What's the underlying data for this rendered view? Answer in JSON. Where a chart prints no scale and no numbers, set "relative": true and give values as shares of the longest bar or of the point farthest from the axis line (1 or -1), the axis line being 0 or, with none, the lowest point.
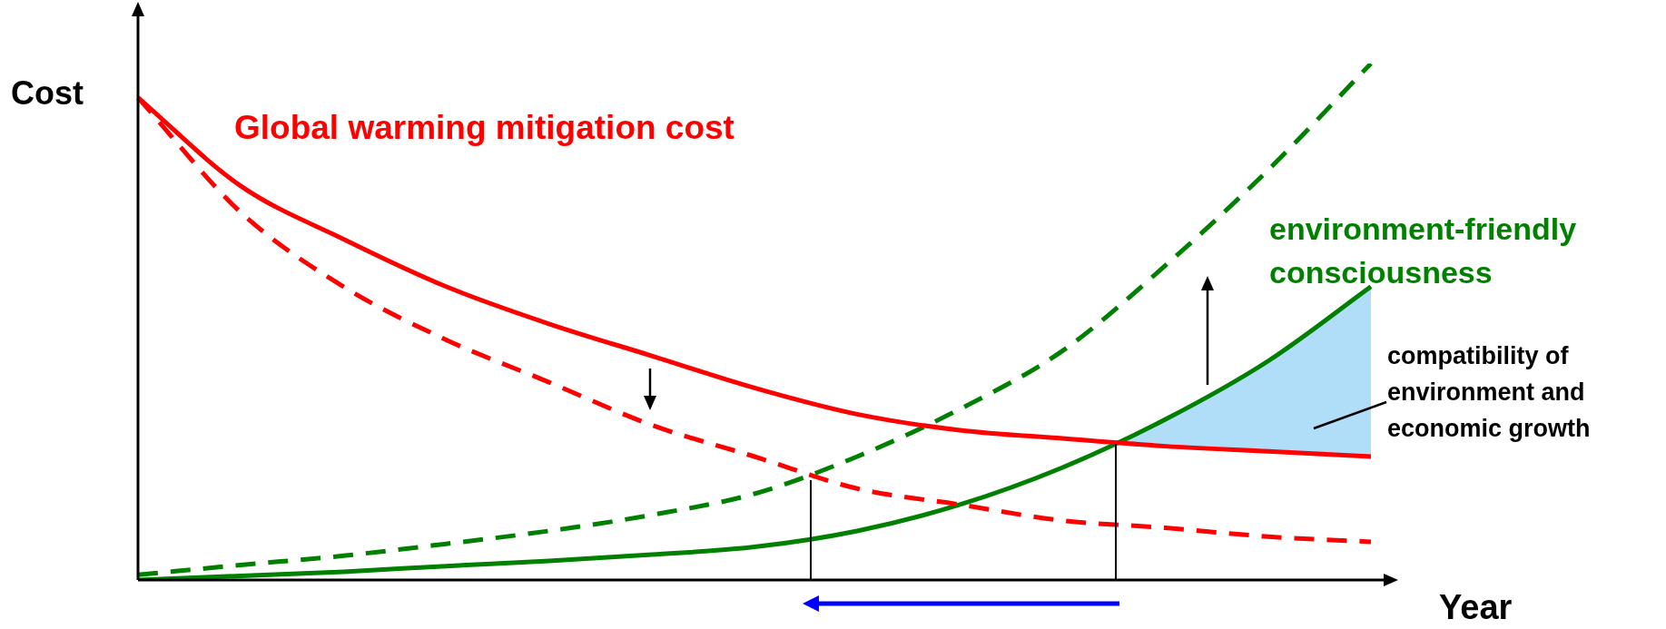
{
  "chart_data": {
    "type": "line",
    "relative": true,
    "xlabel": "Year",
    "ylabel": "Cost",
    "categories": [
      null,
      null,
      null,
      null,
      null,
      null,
      null,
      null,
      null,
      null,
      null,
      null,
      null
    ],
    "series": [
      {
        "name": "Global warming mitigation cost",
        "color": "#ff0000",
        "line_style": "solid",
        "values": [
          0.934,
          0.763,
          0.66,
          0.568,
          0.496,
          0.434,
          0.372,
          0.321,
          0.29,
          0.274,
          0.259,
          0.249,
          0.239
        ]
      },
      {
        "color": "#ff0000",
        "line_style": "dashed",
        "values": [
          0.934,
          0.712,
          0.568,
          0.465,
          0.383,
          0.3,
          0.239,
          0.177,
          0.146,
          0.115,
          0.101,
          0.084,
          0.074
        ]
      },
      {
        "name": "environment-friendly consciousness",
        "color": "#008000",
        "line_style": "solid",
        "lower": [
          null,
          null,
          null,
          null,
          null,
          null,
          null,
          null,
          null,
          0.274,
          0.259,
          0.249,
          0.239
        ],
        "upper": [
          null,
          null,
          null,
          null,
          null,
          null,
          null,
          null,
          null,
          0.218,
          0.311,
          0.424,
          0.568
        ],
        "values": [
          0,
          0.008,
          0.016,
          0.027,
          0.037,
          0.049,
          0.064,
          0.095,
          0.146,
          0.218,
          0.311,
          0.424,
          0.568
        ]
      },
      {
        "color": "#008000",
        "line_style": "dashed",
        "values": [
          0.01,
          0.029,
          0.047,
          0.07,
          0.095,
          0.126,
          0.167,
          0.239,
          0.331,
          0.444,
          0.609,
          0.794,
          1.0
        ]
      }
    ],
    "annotations": [
      "compatibility of environment and economic growth"
    ],
    "legend": false,
    "marker": "none"
  }
}
